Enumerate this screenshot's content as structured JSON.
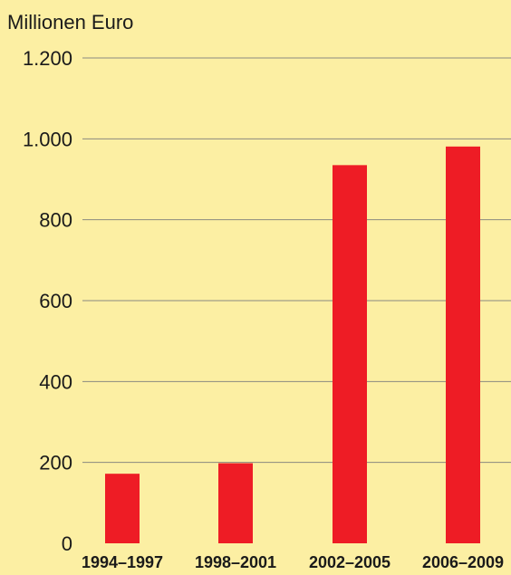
{
  "chart_data": {
    "type": "bar",
    "title": "",
    "xlabel": "",
    "ylabel": "Millionen Euro",
    "categories": [
      "1994–1997",
      "1998–2001",
      "2002–2005",
      "2006–2009"
    ],
    "values": [
      172,
      198,
      935,
      981
    ],
    "ylim": [
      0,
      1200
    ],
    "yticks": [
      0,
      200,
      400,
      600,
      800,
      1000,
      1200
    ],
    "ytick_labels": [
      "0",
      "200",
      "400",
      "600",
      "800",
      "1.000",
      "1.200"
    ],
    "grid": true,
    "legend": "none",
    "colors": {
      "background": "#fcefa3",
      "bar": "#ee1c25",
      "grid": "#8a8a80",
      "text": "#1a1a1a"
    }
  }
}
